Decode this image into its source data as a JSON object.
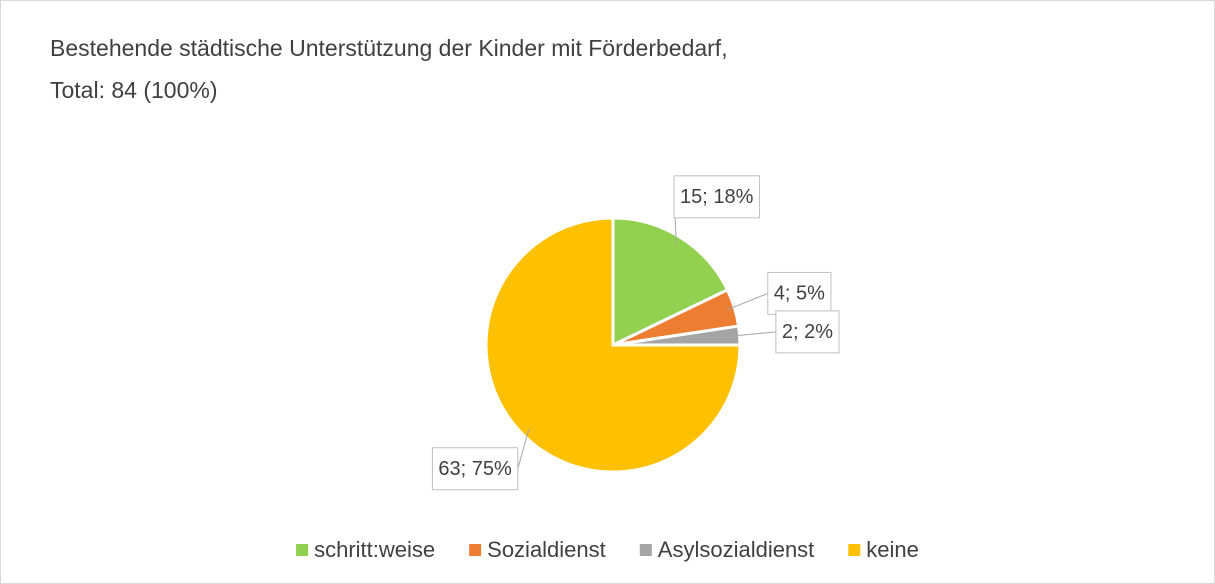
{
  "chart_data": {
    "type": "pie",
    "title": "Bestehende städtische Unterstützung der Kinder mit Förderbedarf,",
    "subtitle": "Total: 84 (100%)",
    "categories": [
      "schritt:weise",
      "Sozialdienst",
      "Asylsozialdienst",
      "keine"
    ],
    "values": [
      15,
      4,
      2,
      63
    ],
    "value_labels": [
      "15; 18%",
      "4; 5%",
      "2; 2%",
      "63; 75%"
    ],
    "colors": [
      "#92d050",
      "#ed7d31",
      "#a5a5a5",
      "#ffc000"
    ],
    "legend": "bottom"
  }
}
